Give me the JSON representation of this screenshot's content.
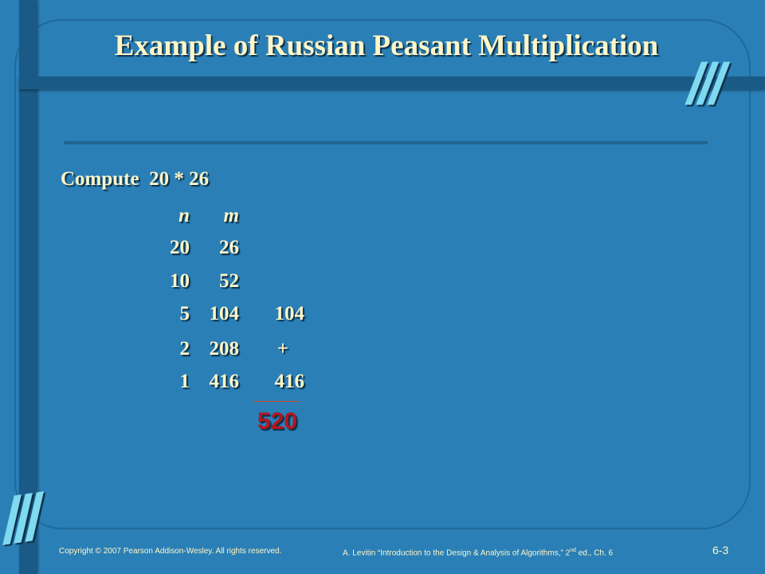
{
  "slide": {
    "title": "Example of Russian Peasant Multiplication",
    "compute_label": "Compute  20 * 26",
    "headers": {
      "n": "n",
      "m": "m"
    },
    "rows": [
      {
        "n": "20",
        "m": "26",
        "sum": ""
      },
      {
        "n": "10",
        "m": "52",
        "sum": ""
      },
      {
        "n": "5",
        "m": "104",
        "sum": "104"
      },
      {
        "n": "2",
        "m": "208",
        "sum": "+"
      },
      {
        "n": "1",
        "m": "416",
        "sum": "416"
      }
    ],
    "result": "520",
    "decoration": "///",
    "colors": {
      "background": "#2a7fb6",
      "text": "#fff6c8",
      "result": "#b5161f",
      "accent": "#7fd9ef"
    }
  },
  "footer": {
    "copyright": "Copyright © 2007 Pearson Addison-Wesley. All rights reserved.",
    "citation_pre": "A. Levitin “Introduction to the Design & Analysis of Algorithms,” 2",
    "citation_sup": "nd",
    "citation_post": " ed., Ch. 6",
    "page_number": "6-3"
  }
}
